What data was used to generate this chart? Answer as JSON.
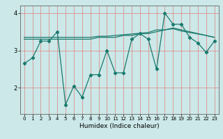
{
  "title": "",
  "xlabel": "Humidex (Indice chaleur)",
  "bg_color": "#cce8e8",
  "line_color": "#1a7a6e",
  "grid_color": "#e08080",
  "series": [
    [
      2.65,
      2.8,
      3.25,
      3.25,
      3.5,
      1.55,
      2.05,
      1.75,
      2.35,
      2.35,
      3.0,
      2.4,
      2.4,
      3.3,
      3.45,
      3.3,
      2.5,
      4.0,
      3.7,
      3.7,
      3.35,
      3.2,
      2.95,
      3.25
    ],
    [
      3.3,
      3.3,
      3.3,
      3.3,
      3.3,
      3.3,
      3.3,
      3.3,
      3.3,
      3.35,
      3.35,
      3.35,
      3.4,
      3.4,
      3.45,
      3.45,
      3.5,
      3.55,
      3.6,
      3.55,
      3.5,
      3.45,
      3.4,
      3.35
    ],
    [
      3.35,
      3.35,
      3.35,
      3.35,
      3.35,
      3.35,
      3.35,
      3.35,
      3.35,
      3.38,
      3.38,
      3.4,
      3.42,
      3.44,
      3.46,
      3.48,
      3.55,
      3.55,
      3.58,
      3.52,
      3.48,
      3.44,
      3.4,
      3.35
    ]
  ],
  "xlim": [
    -0.5,
    23.5
  ],
  "ylim": [
    1.3,
    4.2
  ],
  "xticks": [
    0,
    1,
    2,
    3,
    4,
    5,
    6,
    7,
    8,
    9,
    10,
    11,
    12,
    13,
    14,
    15,
    16,
    17,
    18,
    19,
    20,
    21,
    22,
    23
  ],
  "yticks": [
    2,
    3,
    4
  ],
  "figsize": [
    3.2,
    2.0
  ],
  "dpi": 100
}
